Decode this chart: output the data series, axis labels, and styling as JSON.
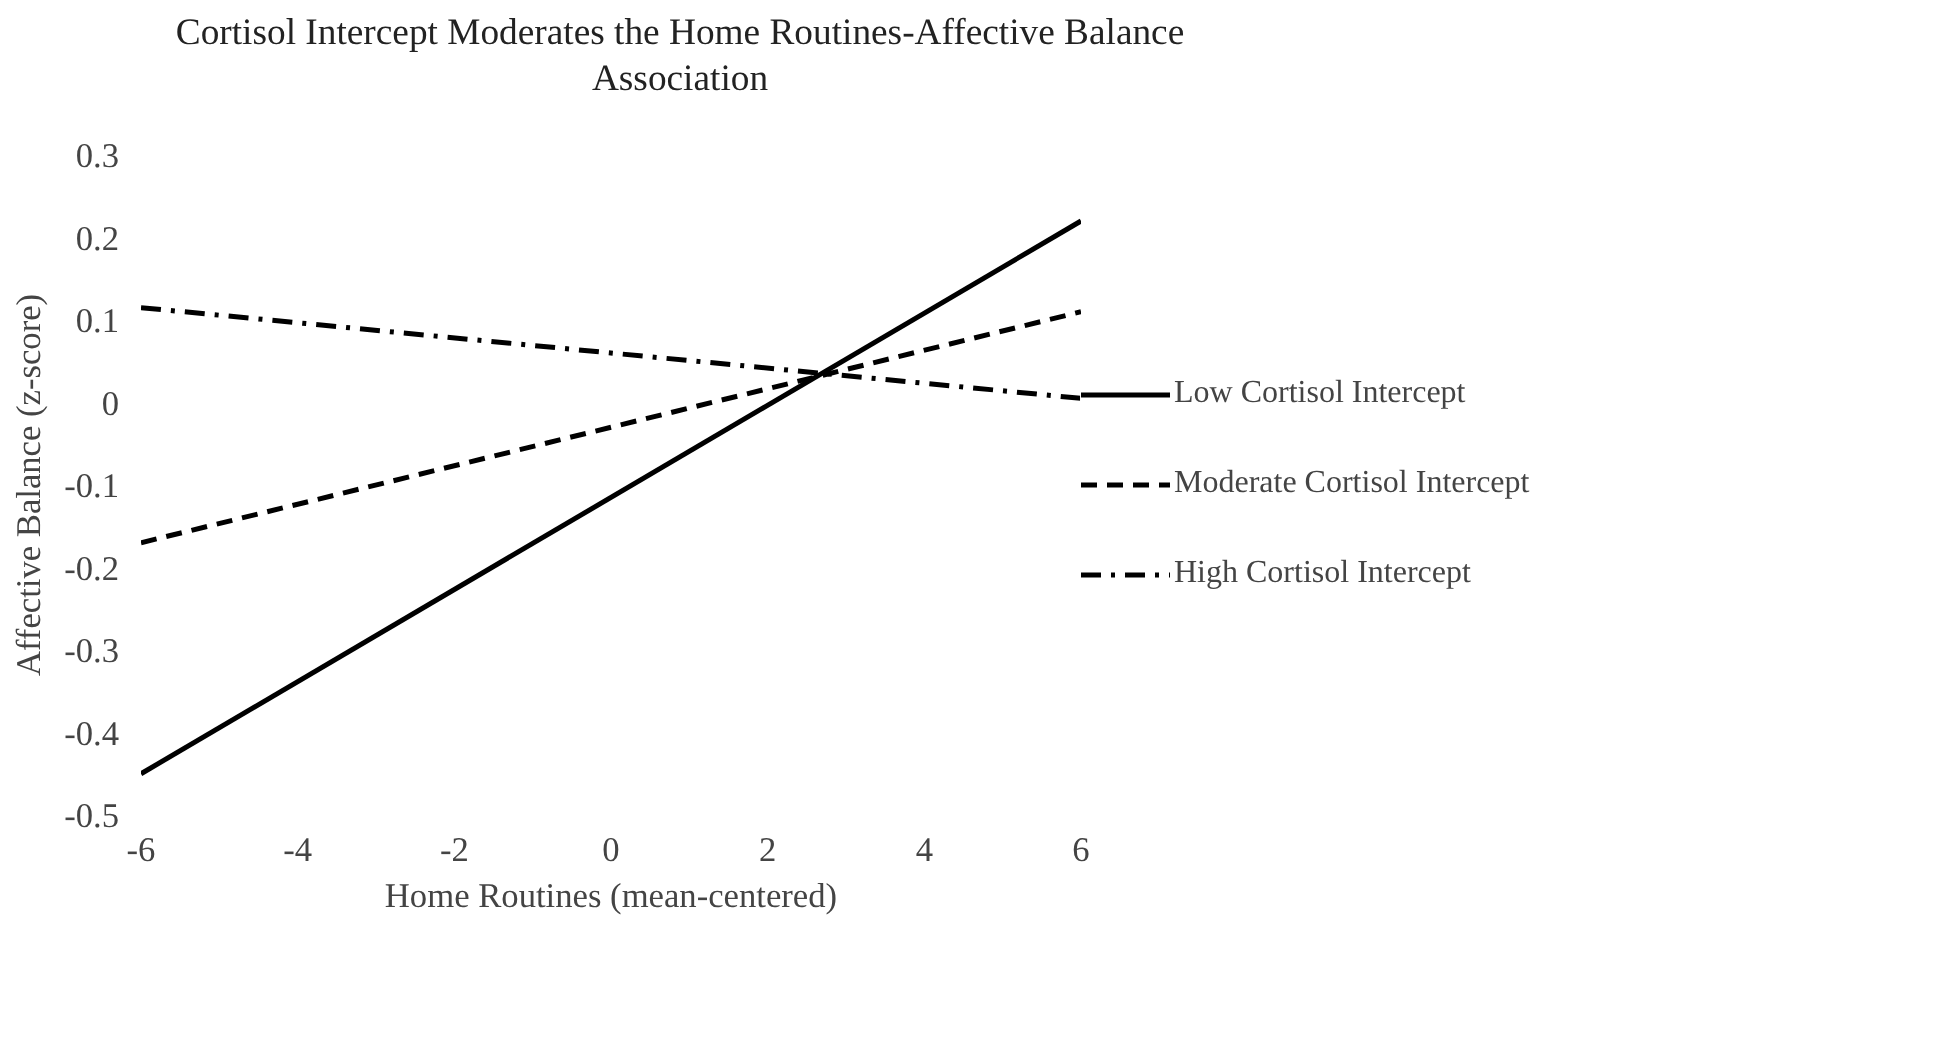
{
  "chart_data": {
    "type": "line",
    "title": "Cortisol Intercept Moderates the Home Routines-Affective Balance\nAssociation",
    "xlabel": "Home Routines (mean-centered)",
    "ylabel": "Affective Balance (z-score)",
    "x": [
      -6,
      6
    ],
    "series": [
      {
        "name": "Low Cortisol Intercept",
        "color": "#000000",
        "values": [
          -0.45,
          0.22
        ],
        "line_style": "solid"
      },
      {
        "name": "Moderate Cortisol Intercept",
        "color": "#000000",
        "values": [
          -0.17,
          0.11
        ],
        "line_style": "dashed"
      },
      {
        "name": "High Cortisol Intercept",
        "color": "#000000",
        "values": [
          0.115,
          0.005
        ],
        "line_style": "dashdot"
      }
    ],
    "xlim": [
      -6,
      6
    ],
    "xticks": [
      -6,
      -4,
      -2,
      0,
      2,
      4,
      6
    ],
    "ylim": [
      -0.5,
      0.3
    ],
    "yticks": [
      -0.5,
      -0.4,
      -0.3,
      -0.2,
      -0.1,
      0,
      0.1,
      0.2,
      0.3
    ],
    "grid": false,
    "legend": "right"
  }
}
